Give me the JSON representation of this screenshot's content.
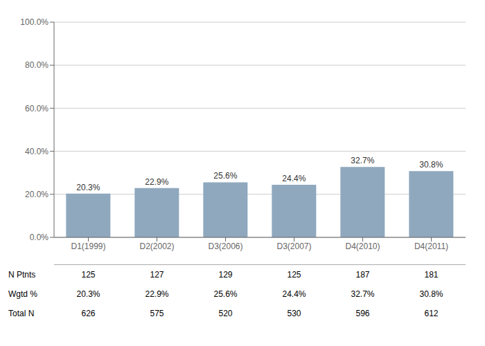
{
  "chart_data": {
    "type": "bar",
    "categories": [
      "D1(1999)",
      "D2(2002)",
      "D3(2006)",
      "D3(2007)",
      "D4(2010)",
      "D4(2011)"
    ],
    "values": [
      20.3,
      22.9,
      25.6,
      24.4,
      32.7,
      30.8
    ],
    "value_labels": [
      "20.3%",
      "22.9%",
      "25.6%",
      "24.4%",
      "32.7%",
      "30.8%"
    ],
    "data_labels": true,
    "color": "#8fa8be",
    "ylim": [
      0,
      100
    ],
    "yticks": [
      {
        "value": 0,
        "label": "0.0%"
      },
      {
        "value": 20,
        "label": "20.0%"
      },
      {
        "value": 40,
        "label": "40.0%"
      },
      {
        "value": 60,
        "label": "60.0%"
      },
      {
        "value": 80,
        "label": "80.0%"
      },
      {
        "value": 100,
        "label": "100.0%"
      }
    ],
    "grid": true,
    "table": [
      {
        "label": "N Ptnts",
        "values": [
          125,
          127,
          129,
          125,
          187,
          181
        ]
      },
      {
        "label": "Wgtd %",
        "values": [
          20.3,
          22.9,
          25.6,
          24.4,
          32.7,
          30.8
        ],
        "value_labels": [
          "20.3%",
          "22.9%",
          "25.6%",
          "24.4%",
          "32.7%",
          "30.8%"
        ]
      },
      {
        "label": "Total N",
        "values": [
          626,
          575,
          520,
          530,
          596,
          612
        ]
      }
    ]
  }
}
